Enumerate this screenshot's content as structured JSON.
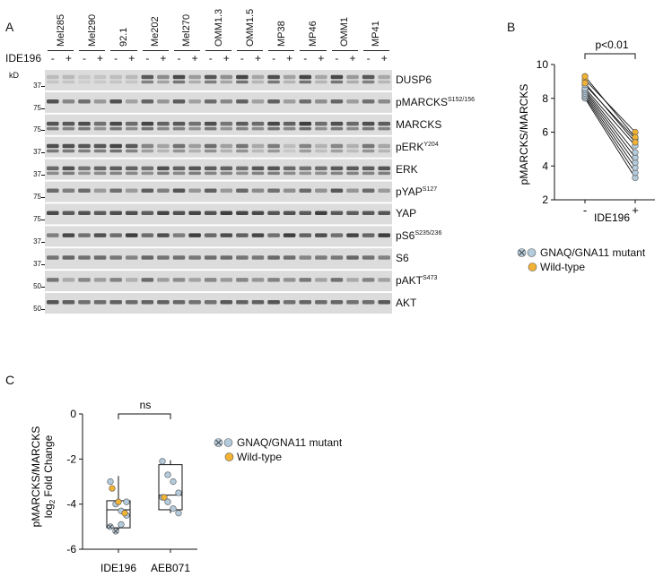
{
  "panel_a": {
    "letter": "A",
    "treatment_label": "IDE196",
    "kd_label": "kD",
    "cell_lines": [
      "Mel285",
      "Mel290",
      "92.1",
      "Me202",
      "Mel270",
      "OMM1.3",
      "OMM1.5",
      "MP38",
      "MP46",
      "OMM1",
      "MP41"
    ],
    "treatment_signs": [
      "-",
      "+"
    ],
    "blots": [
      {
        "label": "DUSP6",
        "sup": "",
        "kd": "37"
      },
      {
        "label": "pMARCKS",
        "sup": "S152/156",
        "kd": "75"
      },
      {
        "label": "MARCKS",
        "sup": "",
        "kd": "75"
      },
      {
        "label": "pERK",
        "sup": "Y204",
        "kd": "37"
      },
      {
        "label": "ERK",
        "sup": "",
        "kd": "37"
      },
      {
        "label": "pYAP",
        "sup": "S127",
        "kd": "75"
      },
      {
        "label": "YAP",
        "sup": "",
        "kd": "75"
      },
      {
        "label": "pS6",
        "sup": "S235/236",
        "kd": "37"
      },
      {
        "label": "S6",
        "sup": "",
        "kd": "37"
      },
      {
        "label": "pAKT",
        "sup": "S473",
        "kd": "50"
      },
      {
        "label": "AKT",
        "sup": "",
        "kd": "50"
      }
    ]
  },
  "panel_b": {
    "letter": "B",
    "ylabel": "pMARCKS/MARCKS",
    "xlabel": "IDE196",
    "significance": "p<0.01",
    "legend": [
      "GNAQ/GNA11 mutant",
      "Wild-type"
    ]
  },
  "panel_c": {
    "letter": "C",
    "ylabel_line1": "pMARCKS/MARCKS",
    "ylabel_line2": "log",
    "ylabel_sub": "2",
    "ylabel_line3": " Fold Change",
    "significance": "ns",
    "legend": [
      "GNAQ/GNA11 mutant",
      "Wild-type"
    ]
  },
  "colors": {
    "mutant": "#b4cbdc",
    "wildtype": "#f2b233",
    "blot_bg": "#dcdcdc",
    "band": "#3a3a3a"
  },
  "chart_data": [
    {
      "type": "scatter",
      "panel": "B",
      "title": "",
      "xlabel": "IDE196",
      "ylabel": "pMARCKS/MARCKS",
      "categories": [
        "-",
        "+"
      ],
      "ylim": [
        2,
        10
      ],
      "yticks": [
        2,
        4,
        6,
        8,
        10
      ],
      "paired": true,
      "series": [
        {
          "name": "GNAQ/GNA11 mutant",
          "pre": [
            8.0,
            8.1,
            8.2,
            8.3,
            8.4,
            8.5,
            8.6,
            8.8
          ],
          "post": [
            3.3,
            3.6,
            3.9,
            4.2,
            4.5,
            4.8,
            5.2,
            5.6
          ]
        },
        {
          "name": "Wild-type",
          "pre": [
            9.1,
            9.3,
            8.9
          ],
          "post": [
            6.0,
            5.7,
            5.4
          ]
        }
      ],
      "annotation": "p<0.01"
    },
    {
      "type": "box",
      "panel": "C",
      "title": "",
      "xlabel": "",
      "ylabel": "pMARCKS/MARCKS log2 Fold Change",
      "categories": [
        "IDE196",
        "AEB071"
      ],
      "ylim": [
        -6,
        0
      ],
      "yticks": [
        0,
        -2,
        -4,
        -6
      ],
      "boxes": [
        {
          "category": "IDE196",
          "q1": -5.05,
          "median": -4.25,
          "q3": -3.85,
          "whisker_low": -5.2,
          "whisker_high": -2.75,
          "mutant": [
            -3.0,
            -4.0,
            -4.3,
            -4.5,
            -5.0,
            -5.2,
            -4.9,
            -3.9
          ],
          "wildtype": [
            -3.3,
            -3.9,
            -4.4
          ]
        },
        {
          "category": "AEB071",
          "q1": -4.25,
          "median": -3.6,
          "q3": -2.25,
          "whisker_low": -4.4,
          "whisker_high": -2.05,
          "mutant": [
            -2.1,
            -2.7,
            -3.0,
            -3.5,
            -3.7,
            -3.9,
            -4.2,
            -4.4
          ],
          "wildtype": [
            -3.7
          ]
        }
      ],
      "annotation": "ns"
    }
  ]
}
